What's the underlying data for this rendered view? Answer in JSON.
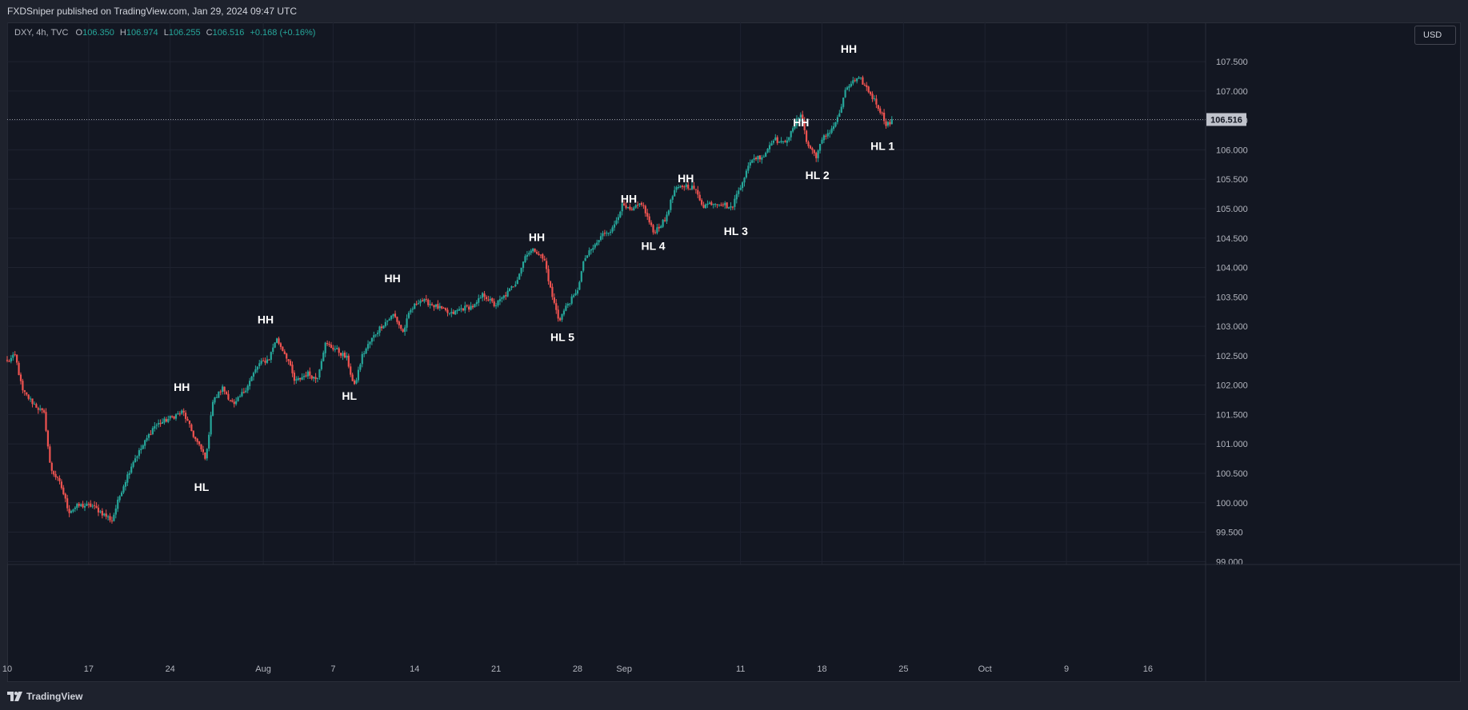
{
  "header": {
    "published_text": "FXDSniper published on TradingView.com, Jan 29, 2024 09:47 UTC"
  },
  "legend": {
    "symbol": "DXY, 4h, TVC",
    "open_label": "O",
    "open": "106.350",
    "high_label": "H",
    "high": "106.974",
    "low_label": "L",
    "low": "106.255",
    "close_label": "C",
    "close": "106.516",
    "change": "+0.168 (+0.16%)"
  },
  "currency_button": "USD",
  "footer": {
    "brand": "TradingView",
    "logo_icon": "tradingview-logo-icon"
  },
  "colors": {
    "background": "#131722",
    "up": "#26a69a",
    "down": "#ef5350",
    "grid": "#1f2330",
    "axis_text": "#b2b5be",
    "price_tag": "#c0c3cc"
  },
  "chart_data": {
    "type": "candlestick",
    "ylim": [
      98.95,
      107.95
    ],
    "y_ticks": [
      "99.000",
      "99.500",
      "100.000",
      "100.500",
      "101.000",
      "101.500",
      "102.000",
      "102.500",
      "103.000",
      "103.500",
      "104.000",
      "104.500",
      "105.000",
      "105.500",
      "106.000",
      "106.500",
      "107.000",
      "107.500"
    ],
    "x_start_day": 10,
    "x_days": 60,
    "x_ticks": [
      {
        "day": 10,
        "label": "10"
      },
      {
        "day": 17,
        "label": "17"
      },
      {
        "day": 24,
        "label": "24"
      },
      {
        "day": 32,
        "label": "Aug"
      },
      {
        "day": 38,
        "label": "7"
      },
      {
        "day": 45,
        "label": "14"
      },
      {
        "day": 52,
        "label": "21"
      },
      {
        "day": 59,
        "label": "28"
      },
      {
        "day": 63,
        "label": "Sep"
      },
      {
        "day": 73,
        "label": "11"
      },
      {
        "day": 80,
        "label": "18"
      },
      {
        "day": 87,
        "label": "25"
      },
      {
        "day": 94,
        "label": "Oct"
      },
      {
        "day": 101,
        "label": "9"
      },
      {
        "day": 108,
        "label": "16"
      }
    ],
    "current_price": 106.516,
    "current_price_label": "106.516",
    "anchors": [
      [
        10.0,
        102.4
      ],
      [
        10.7,
        102.5
      ],
      [
        11.3,
        101.9
      ],
      [
        12.2,
        101.7
      ],
      [
        13.2,
        101.5
      ],
      [
        13.7,
        100.6
      ],
      [
        14.6,
        100.3
      ],
      [
        15.3,
        99.85
      ],
      [
        16.1,
        99.95
      ],
      [
        17.3,
        99.95
      ],
      [
        18.3,
        99.8
      ],
      [
        19.0,
        99.7
      ],
      [
        19.8,
        100.2
      ],
      [
        20.8,
        100.7
      ],
      [
        21.6,
        100.95
      ],
      [
        22.6,
        101.3
      ],
      [
        23.6,
        101.4
      ],
      [
        25.1,
        101.55
      ],
      [
        26.1,
        101.1
      ],
      [
        27.1,
        100.75
      ],
      [
        27.6,
        101.7
      ],
      [
        28.5,
        101.95
      ],
      [
        29.5,
        101.65
      ],
      [
        30.5,
        101.95
      ],
      [
        31.6,
        102.35
      ],
      [
        32.5,
        102.45
      ],
      [
        33.1,
        102.8
      ],
      [
        34.1,
        102.45
      ],
      [
        34.7,
        102.05
      ],
      [
        35.8,
        102.2
      ],
      [
        36.6,
        102.1
      ],
      [
        37.3,
        102.7
      ],
      [
        38.3,
        102.6
      ],
      [
        39.2,
        102.45
      ],
      [
        39.8,
        101.95
      ],
      [
        40.5,
        102.5
      ],
      [
        41.2,
        102.75
      ],
      [
        42.1,
        103.0
      ],
      [
        43.2,
        103.2
      ],
      [
        44.0,
        102.9
      ],
      [
        44.6,
        103.25
      ],
      [
        45.4,
        103.45
      ],
      [
        46.2,
        103.4
      ],
      [
        47.2,
        103.3
      ],
      [
        48.1,
        103.2
      ],
      [
        49.0,
        103.3
      ],
      [
        50.2,
        103.35
      ],
      [
        50.9,
        103.55
      ],
      [
        51.9,
        103.35
      ],
      [
        52.9,
        103.55
      ],
      [
        53.7,
        103.75
      ],
      [
        54.6,
        104.25
      ],
      [
        55.4,
        104.3
      ],
      [
        56.2,
        104.1
      ],
      [
        56.7,
        103.6
      ],
      [
        57.4,
        103.1
      ],
      [
        58.2,
        103.4
      ],
      [
        58.9,
        103.55
      ],
      [
        59.6,
        104.15
      ],
      [
        60.6,
        104.4
      ],
      [
        61.3,
        104.6
      ],
      [
        62.0,
        104.65
      ],
      [
        62.8,
        105.05
      ],
      [
        63.6,
        104.95
      ],
      [
        64.5,
        105.1
      ],
      [
        65.5,
        104.6
      ],
      [
        66.5,
        104.8
      ],
      [
        67.3,
        105.3
      ],
      [
        68.2,
        105.4
      ],
      [
        69.0,
        105.35
      ],
      [
        69.8,
        105.05
      ],
      [
        70.5,
        105.1
      ],
      [
        71.4,
        105.1
      ],
      [
        72.2,
        105.0
      ],
      [
        73.1,
        105.45
      ],
      [
        74.0,
        105.85
      ],
      [
        75.0,
        105.9
      ],
      [
        75.8,
        106.2
      ],
      [
        76.6,
        106.1
      ],
      [
        77.4,
        106.3
      ],
      [
        78.2,
        106.65
      ],
      [
        78.7,
        106.1
      ],
      [
        79.5,
        105.9
      ],
      [
        80.1,
        106.2
      ],
      [
        80.8,
        106.35
      ],
      [
        81.4,
        106.55
      ],
      [
        82.1,
        107.05
      ],
      [
        82.6,
        107.15
      ],
      [
        83.3,
        107.2
      ],
      [
        84.0,
        107.0
      ],
      [
        84.8,
        106.75
      ],
      [
        85.5,
        106.45
      ],
      [
        86.1,
        106.45
      ]
    ],
    "annotations": [
      {
        "label": "HH",
        "day": 25.0,
        "price": 101.9
      },
      {
        "label": "HL",
        "day": 26.7,
        "price": 100.2
      },
      {
        "label": "HH",
        "day": 32.2,
        "price": 103.05
      },
      {
        "label": "HL",
        "day": 39.4,
        "price": 101.75
      },
      {
        "label": "HH",
        "day": 43.1,
        "price": 103.75
      },
      {
        "label": "HH",
        "day": 55.5,
        "price": 104.45
      },
      {
        "label": "HL 5",
        "day": 57.7,
        "price": 102.75
      },
      {
        "label": "HH",
        "day": 63.4,
        "price": 105.1
      },
      {
        "label": "HL 4",
        "day": 65.5,
        "price": 104.3
      },
      {
        "label": "HH",
        "day": 68.3,
        "price": 105.45
      },
      {
        "label": "HL 3",
        "day": 72.6,
        "price": 104.55
      },
      {
        "label": "HH",
        "day": 78.2,
        "price": 106.4
      },
      {
        "label": "HL 2",
        "day": 79.6,
        "price": 105.5
      },
      {
        "label": "HH",
        "day": 82.3,
        "price": 107.65
      },
      {
        "label": "HL 1",
        "day": 85.2,
        "price": 106.0
      }
    ]
  }
}
